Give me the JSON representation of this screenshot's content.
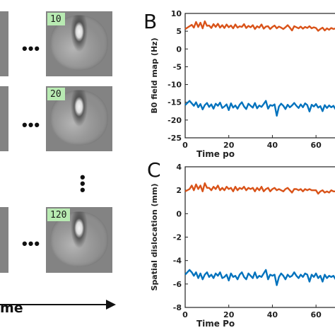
{
  "figure": {
    "frames": [
      {
        "badge": "10"
      },
      {
        "badge": "20"
      },
      {
        "badge": "120"
      }
    ],
    "dots_horizontal": "•••",
    "dots_vertical": "•\n•\n•",
    "time_label": "me"
  },
  "chart_data": [
    {
      "panel": "B",
      "type": "line",
      "ylabel": "B0 field map (Hz)",
      "xlabel": "Time po",
      "xlim": [
        0,
        70
      ],
      "ylim": [
        -25,
        10
      ],
      "xticks": [
        0,
        20,
        40,
        60
      ],
      "xtick_labels": [
        "0",
        "20",
        "40",
        "60"
      ],
      "yticks": [
        10,
        5,
        0,
        -5,
        -10,
        -15,
        -20,
        -25
      ],
      "ytick_labels": [
        "10",
        "5",
        "0",
        "-5",
        "-10",
        "-15",
        "-20",
        "-25"
      ],
      "grid": false,
      "series": [
        {
          "color": "#d95319",
          "x": [
            0,
            2,
            3,
            4,
            5,
            6,
            7,
            8,
            9,
            10,
            11,
            12,
            13,
            14,
            15,
            16,
            17,
            18,
            19,
            20,
            21,
            22,
            23,
            24,
            25,
            26,
            27,
            28,
            29,
            30,
            31,
            32,
            33,
            34,
            35,
            36,
            37,
            38,
            39,
            40,
            41,
            42,
            43,
            44,
            45,
            46,
            47,
            48,
            49,
            50,
            51,
            52,
            53,
            54,
            55,
            56,
            57,
            58,
            59,
            60,
            61,
            62,
            63,
            64,
            65,
            66,
            67,
            68,
            69,
            70
          ],
          "y": [
            5.6,
            6.4,
            6.8,
            6.0,
            7.6,
            6.2,
            7.4,
            5.8,
            7.8,
            6.5,
            6.6,
            5.9,
            7.0,
            6.2,
            7.1,
            6.0,
            6.7,
            5.9,
            6.9,
            6.1,
            6.6,
            5.8,
            6.9,
            6.0,
            6.4,
            6.2,
            7.0,
            5.9,
            6.5,
            6.1,
            6.7,
            5.6,
            6.4,
            6.0,
            6.9,
            5.7,
            6.3,
            6.4,
            5.6,
            6.2,
            6.6,
            5.8,
            6.3,
            6.0,
            5.6,
            6.1,
            6.7,
            6.0,
            5.2,
            6.4,
            6.1,
            5.8,
            6.3,
            5.7,
            6.2,
            5.9,
            6.4,
            5.8,
            6.1,
            5.9,
            5.1,
            5.6,
            6.0,
            5.2,
            5.8,
            5.4,
            5.9,
            5.6,
            5.8,
            5.5
          ]
        },
        {
          "color": "#0072bd",
          "x": [
            0,
            2,
            3,
            4,
            5,
            6,
            7,
            8,
            9,
            10,
            11,
            12,
            13,
            14,
            15,
            16,
            17,
            18,
            19,
            20,
            21,
            22,
            23,
            24,
            25,
            26,
            27,
            28,
            29,
            30,
            31,
            32,
            33,
            34,
            35,
            36,
            37,
            38,
            39,
            40,
            41,
            42,
            43,
            44,
            45,
            46,
            47,
            48,
            49,
            50,
            51,
            52,
            53,
            54,
            55,
            56,
            57,
            58,
            59,
            60,
            61,
            62,
            63,
            64,
            65,
            66,
            67,
            68,
            69,
            70
          ],
          "y": [
            -15.8,
            -14.6,
            -15.3,
            -16.0,
            -15.0,
            -16.4,
            -15.5,
            -17.0,
            -15.8,
            -15.2,
            -16.3,
            -15.6,
            -16.8,
            -15.4,
            -16.0,
            -15.1,
            -16.6,
            -16.2,
            -15.6,
            -17.2,
            -15.3,
            -16.5,
            -15.9,
            -16.8,
            -15.7,
            -15.0,
            -16.2,
            -16.9,
            -15.4,
            -16.0,
            -16.5,
            -15.2,
            -16.7,
            -15.9,
            -16.3,
            -15.5,
            -14.6,
            -16.8,
            -15.8,
            -16.0,
            -15.6,
            -18.8,
            -16.2,
            -15.4,
            -16.0,
            -16.9,
            -15.7,
            -16.4,
            -15.9,
            -15.2,
            -16.0,
            -16.6,
            -15.6,
            -16.4,
            -15.3,
            -15.8,
            -17.6,
            -15.7,
            -16.2,
            -15.5,
            -16.5,
            -16.1,
            -17.5,
            -15.8,
            -16.6,
            -15.9,
            -16.4,
            -16.0,
            -17.0,
            -16.1
          ]
        }
      ]
    },
    {
      "panel": "C",
      "type": "line",
      "ylabel": "Spatial dislocation (mm)",
      "xlabel": "Time Po",
      "xlim": [
        0,
        70
      ],
      "ylim": [
        -8,
        4
      ],
      "xticks": [
        0,
        20,
        40,
        60
      ],
      "xtick_labels": [
        "0",
        "20",
        "40",
        "60"
      ],
      "yticks": [
        4,
        2,
        0,
        -2,
        -4,
        -6,
        -8
      ],
      "ytick_labels": [
        "4",
        "2",
        "0",
        "-2",
        "-4",
        "-6",
        "-8"
      ],
      "grid": false,
      "series": [
        {
          "color": "#d95319",
          "x": [
            0,
            2,
            3,
            4,
            5,
            6,
            7,
            8,
            9,
            10,
            11,
            12,
            13,
            14,
            15,
            16,
            17,
            18,
            19,
            20,
            21,
            22,
            23,
            24,
            25,
            26,
            27,
            28,
            29,
            30,
            31,
            32,
            33,
            34,
            35,
            36,
            37,
            38,
            39,
            40,
            41,
            42,
            43,
            44,
            45,
            46,
            47,
            48,
            49,
            50,
            51,
            52,
            53,
            54,
            55,
            56,
            57,
            58,
            59,
            60,
            61,
            62,
            63,
            64,
            65,
            66,
            67,
            68,
            69,
            70
          ],
          "y": [
            1.9,
            2.1,
            2.4,
            2.0,
            2.5,
            2.1,
            2.4,
            1.9,
            2.6,
            2.2,
            2.2,
            2.0,
            2.3,
            2.1,
            2.4,
            2.0,
            2.2,
            2.0,
            2.3,
            2.1,
            2.2,
            1.9,
            2.3,
            2.0,
            2.2,
            2.1,
            2.3,
            2.0,
            2.2,
            2.1,
            2.2,
            1.9,
            2.2,
            2.0,
            2.3,
            1.9,
            2.1,
            2.2,
            1.9,
            2.1,
            2.2,
            2.0,
            2.1,
            2.0,
            1.9,
            2.1,
            2.2,
            2.0,
            1.8,
            2.1,
            2.1,
            2.0,
            2.1,
            1.9,
            2.1,
            2.0,
            2.1,
            2.0,
            2.0,
            2.0,
            1.7,
            1.9,
            2.0,
            1.8,
            1.9,
            1.8,
            2.0,
            1.9,
            1.9,
            1.9
          ]
        },
        {
          "color": "#0072bd",
          "x": [
            0,
            2,
            3,
            4,
            5,
            6,
            7,
            8,
            9,
            10,
            11,
            12,
            13,
            14,
            15,
            16,
            17,
            18,
            19,
            20,
            21,
            22,
            23,
            24,
            25,
            26,
            27,
            28,
            29,
            30,
            31,
            32,
            33,
            34,
            35,
            36,
            37,
            38,
            39,
            40,
            41,
            42,
            43,
            44,
            45,
            46,
            47,
            48,
            49,
            50,
            51,
            52,
            53,
            54,
            55,
            56,
            57,
            58,
            59,
            60,
            61,
            62,
            63,
            64,
            65,
            66,
            67,
            68,
            69,
            70
          ],
          "y": [
            -5.2,
            -4.8,
            -5.0,
            -5.3,
            -5.0,
            -5.5,
            -5.1,
            -5.6,
            -5.2,
            -5.0,
            -5.4,
            -5.2,
            -5.5,
            -5.1,
            -5.3,
            -5.0,
            -5.5,
            -5.4,
            -5.2,
            -5.7,
            -5.1,
            -5.4,
            -5.3,
            -5.6,
            -5.2,
            -5.0,
            -5.4,
            -5.6,
            -5.1,
            -5.3,
            -5.5,
            -5.0,
            -5.5,
            -5.3,
            -5.4,
            -5.1,
            -4.8,
            -5.6,
            -5.2,
            -5.3,
            -5.2,
            -6.1,
            -5.4,
            -5.1,
            -5.3,
            -5.6,
            -5.2,
            -5.4,
            -5.3,
            -5.0,
            -5.3,
            -5.5,
            -5.2,
            -5.4,
            -5.1,
            -5.2,
            -5.8,
            -5.2,
            -5.4,
            -5.1,
            -5.5,
            -5.3,
            -5.8,
            -5.2,
            -5.5,
            -5.3,
            -5.4,
            -5.3,
            -5.6,
            -5.3
          ]
        }
      ]
    }
  ]
}
